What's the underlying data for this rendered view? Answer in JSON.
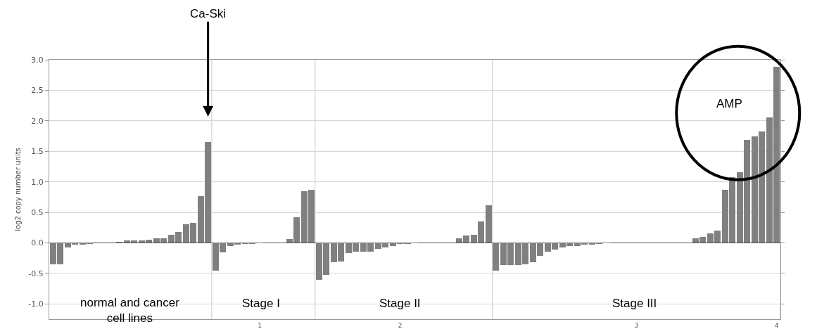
{
  "chart_data": {
    "type": "bar",
    "ylabel": "log2 copy number units",
    "categories": [
      null,
      null,
      null,
      null,
      null,
      null,
      null,
      null,
      null,
      null,
      null,
      null,
      null,
      null,
      null,
      null,
      null,
      null,
      null,
      null,
      null,
      null,
      null,
      null,
      null,
      null,
      null,
      null,
      "1",
      null,
      null,
      null,
      null,
      null,
      null,
      null,
      null,
      null,
      null,
      null,
      null,
      null,
      null,
      null,
      null,
      null,
      null,
      "2",
      null,
      null,
      null,
      null,
      null,
      null,
      null,
      null,
      null,
      null,
      null,
      null,
      null,
      null,
      null,
      null,
      null,
      null,
      null,
      null,
      null,
      null,
      null,
      null,
      null,
      null,
      null,
      null,
      null,
      null,
      null,
      "3",
      null,
      null,
      null,
      null,
      null,
      null,
      null,
      null,
      null,
      null,
      null,
      null,
      null,
      null,
      null,
      null,
      null,
      null,
      "4"
    ],
    "values": [
      -0.35,
      -0.35,
      -0.08,
      -0.03,
      -0.03,
      -0.02,
      0,
      0,
      0.01,
      0.02,
      0.04,
      0.04,
      0.04,
      0.05,
      0.07,
      0.08,
      0.13,
      0.18,
      0.31,
      0.33,
      0.77,
      1.65,
      -0.45,
      -0.16,
      -0.05,
      -0.03,
      -0.02,
      -0.02,
      -0.01,
      0,
      0,
      0,
      0.06,
      0.42,
      0.85,
      0.87,
      -0.61,
      -0.53,
      -0.32,
      -0.31,
      -0.17,
      -0.14,
      -0.14,
      -0.14,
      -0.1,
      -0.07,
      -0.05,
      -0.02,
      -0.02,
      -0.01,
      0,
      0,
      0,
      0,
      0,
      0.07,
      0.12,
      0.13,
      0.35,
      0.62,
      -0.45,
      -0.36,
      -0.36,
      -0.36,
      -0.35,
      -0.32,
      -0.21,
      -0.14,
      -0.11,
      -0.07,
      -0.05,
      -0.05,
      -0.03,
      -0.03,
      -0.02,
      -0.01,
      0,
      0,
      0,
      0,
      0,
      0,
      0,
      0,
      0,
      0,
      0.01,
      0.07,
      0.1,
      0.16,
      0.2,
      0.87,
      1.08,
      1.16,
      1.69,
      1.75,
      1.82,
      2.06,
      2.88
    ],
    "color": "#808080",
    "ylim": [
      -1.25,
      3.0
    ],
    "yticks": [
      {
        "value": -1,
        "label": "-1.0"
      },
      {
        "value": -0.5,
        "label": "-0.5"
      },
      {
        "value": 0,
        "label": "0.0"
      },
      {
        "value": 0.5,
        "label": "0.5"
      },
      {
        "value": 1,
        "label": "1.0"
      },
      {
        "value": 1.5,
        "label": "1.5"
      },
      {
        "value": 2,
        "label": "2.0"
      },
      {
        "value": 2.5,
        "label": "2.5"
      },
      {
        "value": 3,
        "label": "3.0"
      }
    ],
    "grid": "y",
    "annotations": [
      "Ca-Ski",
      "AMP",
      "normal and cancer cell lines",
      "Stage I",
      "Stage II",
      "Stage III"
    ]
  }
}
